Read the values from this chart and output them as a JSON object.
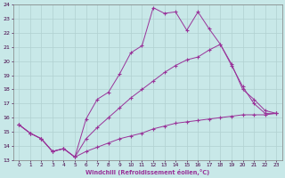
{
  "xlabel": "Windchill (Refroidissement éolien,°C)",
  "xlim": [
    -0.5,
    23.5
  ],
  "ylim": [
    13,
    24
  ],
  "xticks": [
    0,
    1,
    2,
    3,
    4,
    5,
    6,
    7,
    8,
    9,
    10,
    11,
    12,
    13,
    14,
    15,
    16,
    17,
    18,
    19,
    20,
    21,
    22,
    23
  ],
  "yticks": [
    13,
    14,
    15,
    16,
    17,
    18,
    19,
    20,
    21,
    22,
    23,
    24
  ],
  "background_color": "#c8e8e8",
  "grid_color": "#b0d0d0",
  "line_color": "#993399",
  "line1_x": [
    0,
    1,
    2,
    3,
    4,
    5,
    6,
    7,
    8,
    9,
    10,
    11,
    12,
    13,
    14,
    15,
    16,
    17,
    18,
    19,
    20,
    21,
    22,
    23
  ],
  "line1_y": [
    15.5,
    14.9,
    14.5,
    13.6,
    13.8,
    13.2,
    15.9,
    17.3,
    17.8,
    19.1,
    20.6,
    21.1,
    23.8,
    23.4,
    23.5,
    22.2,
    23.5,
    22.3,
    21.2,
    19.8,
    18.0,
    17.3,
    16.5,
    16.3
  ],
  "line2_x": [
    0,
    1,
    2,
    3,
    4,
    5,
    6,
    7,
    8,
    9,
    10,
    11,
    12,
    13,
    14,
    15,
    16,
    17,
    18,
    19,
    20,
    21,
    22,
    23
  ],
  "line2_y": [
    15.5,
    14.9,
    14.5,
    13.6,
    13.8,
    13.2,
    14.5,
    15.3,
    16.0,
    16.7,
    17.4,
    18.0,
    18.6,
    19.2,
    19.7,
    20.1,
    20.3,
    20.8,
    21.2,
    19.7,
    18.2,
    17.0,
    16.3,
    16.3
  ],
  "line3_x": [
    0,
    1,
    2,
    3,
    4,
    5,
    6,
    7,
    8,
    9,
    10,
    11,
    12,
    13,
    14,
    15,
    16,
    17,
    18,
    19,
    20,
    21,
    22,
    23
  ],
  "line3_y": [
    15.5,
    14.9,
    14.5,
    13.6,
    13.8,
    13.2,
    13.6,
    13.9,
    14.2,
    14.5,
    14.7,
    14.9,
    15.2,
    15.4,
    15.6,
    15.7,
    15.8,
    15.9,
    16.0,
    16.1,
    16.2,
    16.2,
    16.2,
    16.3
  ]
}
